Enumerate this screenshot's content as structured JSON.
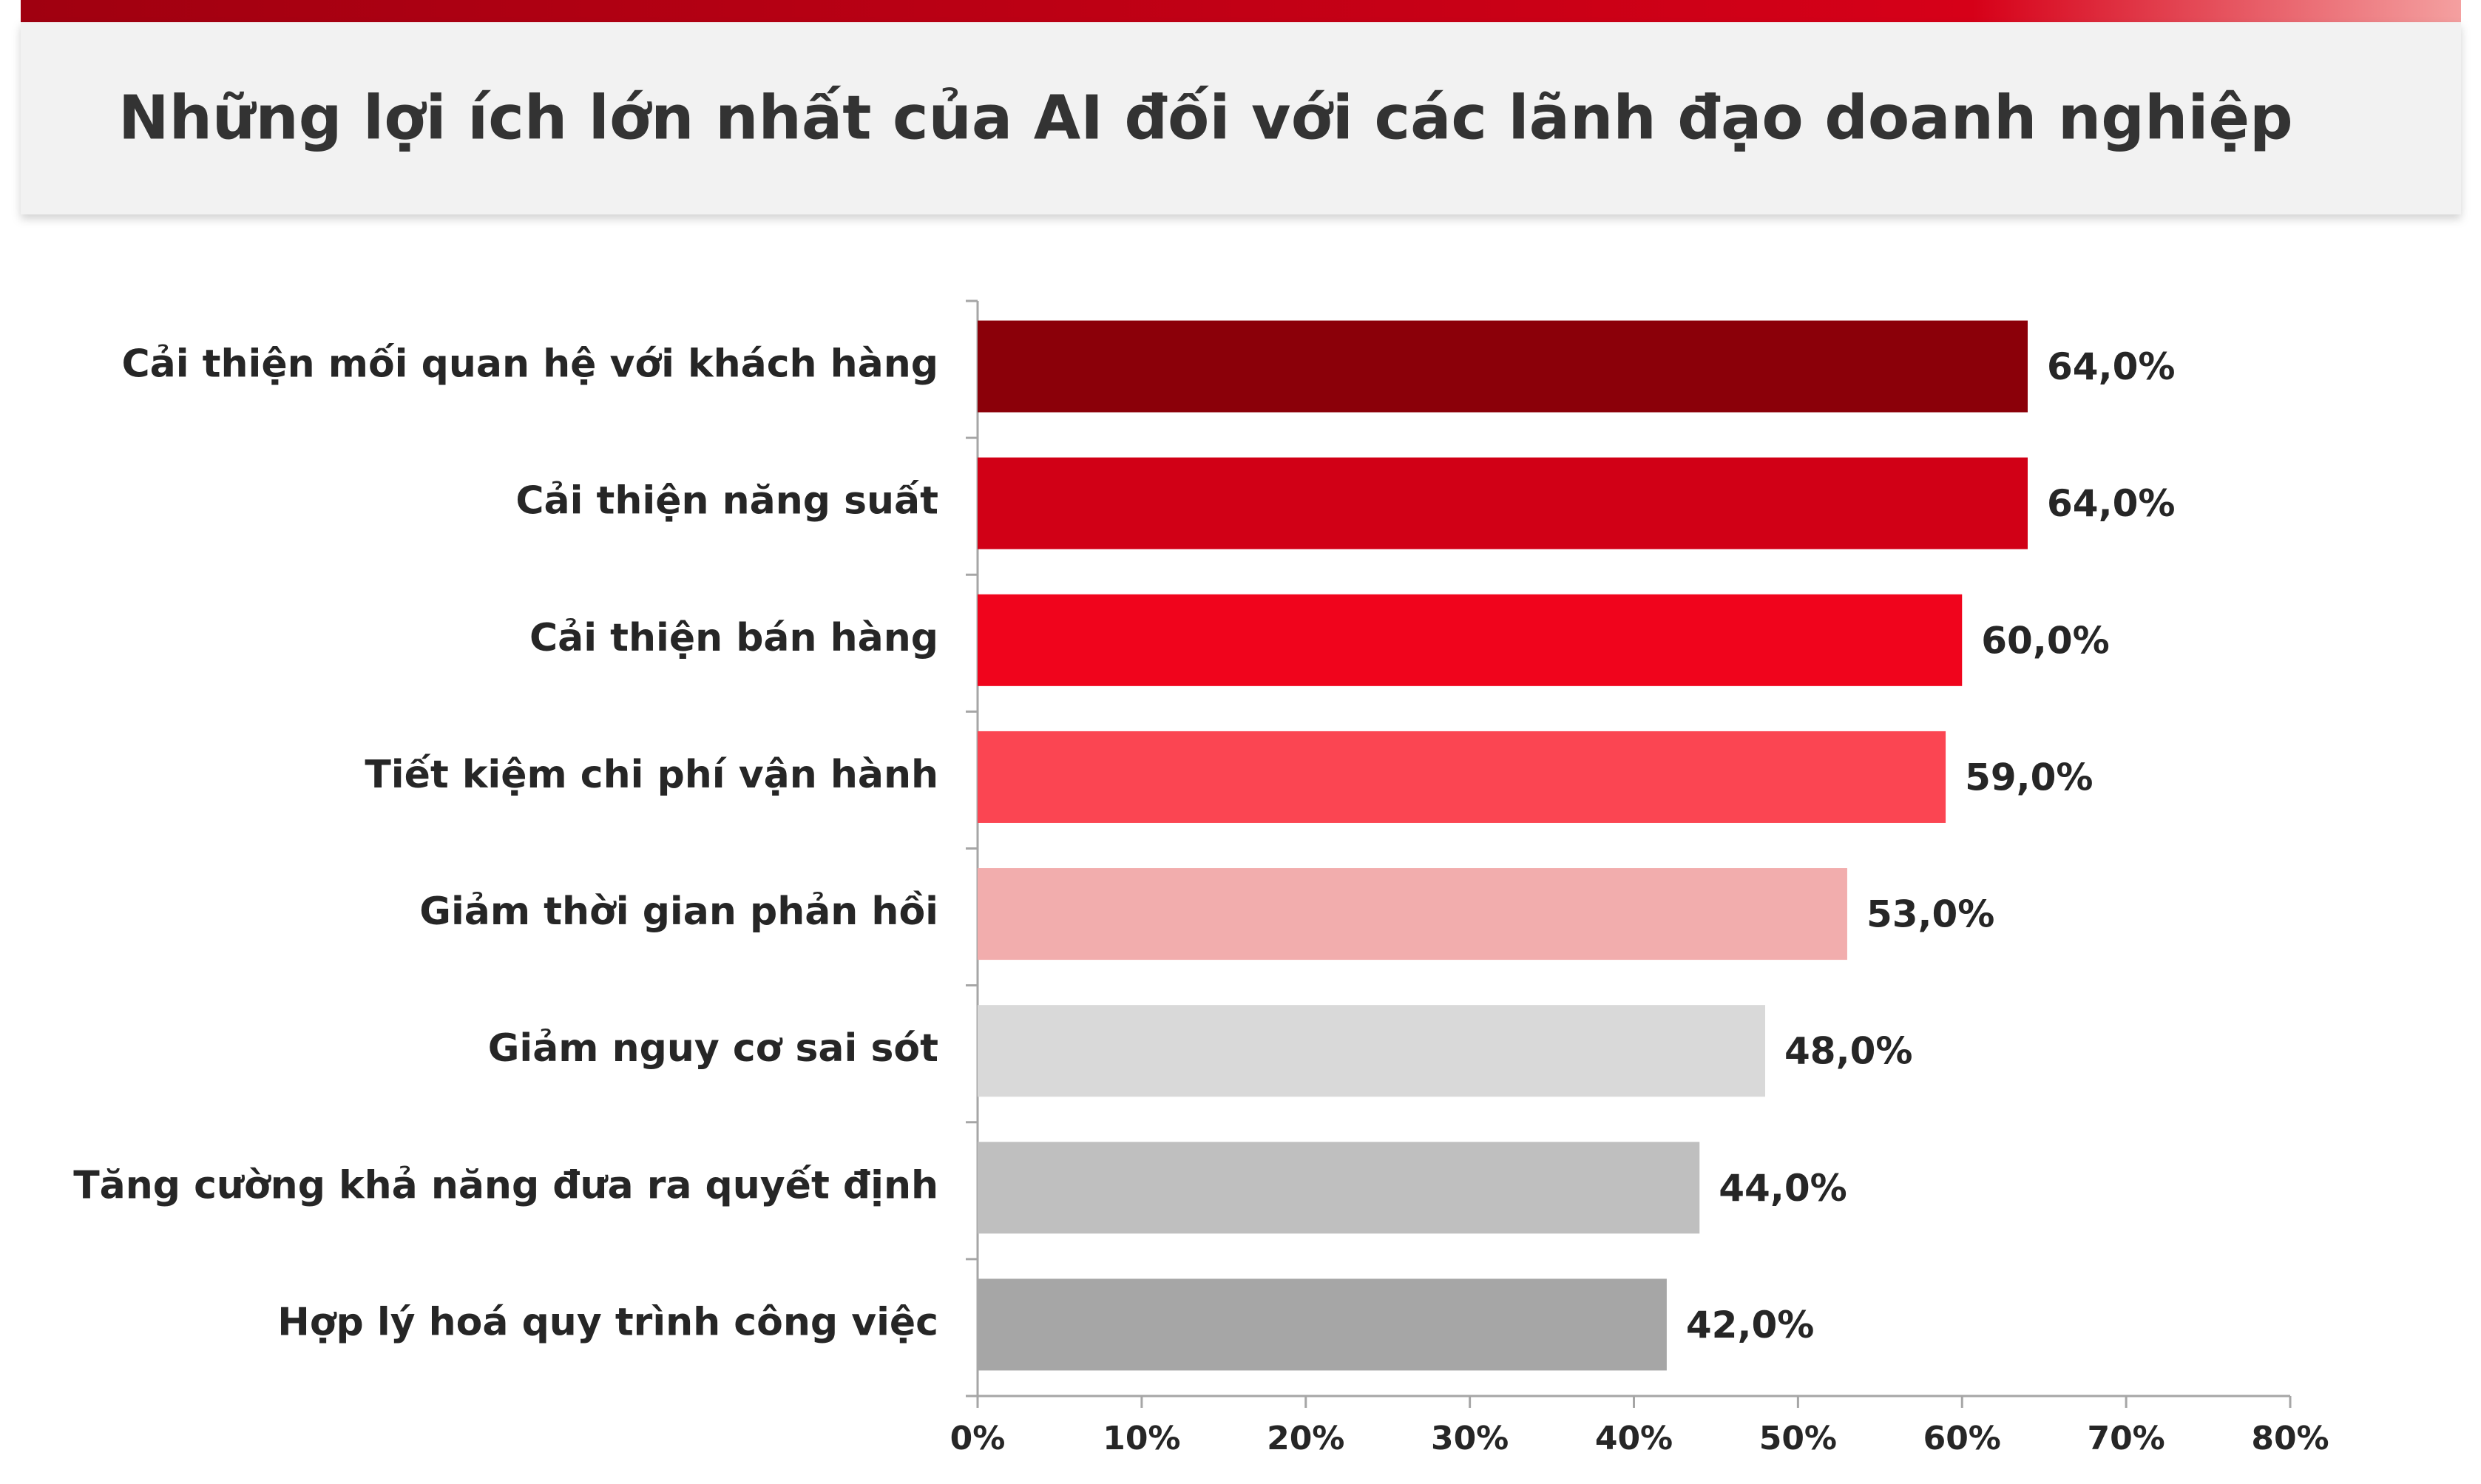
{
  "chart_data": {
    "type": "bar",
    "orientation": "horizontal",
    "title": "Những lợi ích lớn nhất của AI đối với các lãnh đạo doanh nghiệp",
    "categories": [
      "Cải thiện mối quan hệ với khách hàng",
      "Cải thiện năng suất",
      "Cải thiện bán hàng",
      "Tiết kiệm chi phí vận hành",
      "Giảm thời gian phản hồi",
      "Giảm nguy cơ sai sót",
      "Tăng cường khả năng đưa ra quyết định",
      "Hợp lý hoá quy trình công việc"
    ],
    "values": [
      64,
      64,
      60,
      59,
      53,
      48,
      44,
      42
    ],
    "value_labels": [
      "64,0%",
      "64,0%",
      "60,0%",
      "59,0%",
      "53,0%",
      "48,0%",
      "44,0%",
      "42,0%"
    ],
    "colors": [
      "#8b0009",
      "#d10016",
      "#f0041c",
      "#fb4552",
      "#f2adad",
      "#d9d9d9",
      "#bfbfbf",
      "#a6a6a6"
    ],
    "xlim": [
      0,
      80
    ],
    "xticks": [
      {
        "value": 0,
        "label": "0%"
      },
      {
        "value": 10,
        "label": "10%"
      },
      {
        "value": 20,
        "label": "20%"
      },
      {
        "value": 30,
        "label": "30%"
      },
      {
        "value": 40,
        "label": "40%"
      },
      {
        "value": 50,
        "label": "50%"
      },
      {
        "value": 60,
        "label": "60%"
      },
      {
        "value": 70,
        "label": "70%"
      },
      {
        "value": 80,
        "label": "80%"
      }
    ]
  }
}
